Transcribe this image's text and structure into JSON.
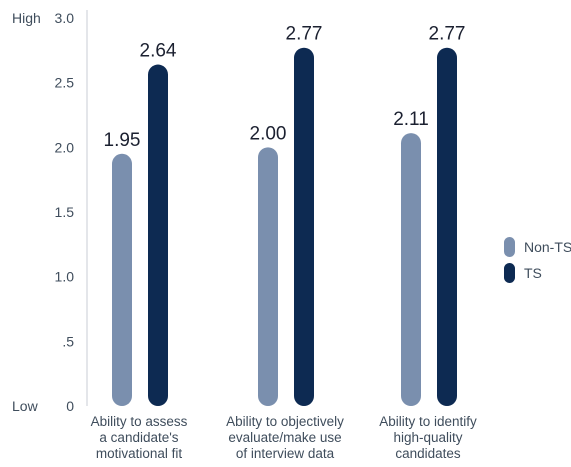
{
  "chart_data": {
    "type": "bar",
    "title": "",
    "xlabel": "",
    "ylabel": "",
    "ylim": [
      0,
      3.0
    ],
    "yticks": [
      {
        "value": 3.0,
        "label": "3.0"
      },
      {
        "value": 2.5,
        "label": "2.5"
      },
      {
        "value": 2.0,
        "label": "2.0"
      },
      {
        "value": 1.5,
        "label": "1.5"
      },
      {
        "value": 1.0,
        "label": "1.0"
      },
      {
        "value": 0.5,
        "label": ".5"
      },
      {
        "value": 0,
        "label": "0"
      }
    ],
    "scale_labels": {
      "high": "High",
      "low": "Low"
    },
    "categories": [
      [
        "Ability to assess",
        "a candidate's",
        "motivational fit"
      ],
      [
        "Ability to objectively",
        "evaluate/make use",
        "of interview data"
      ],
      [
        "Ability to identify",
        "high-quality",
        "candidates"
      ]
    ],
    "series": [
      {
        "name": "Non-TS",
        "color": "#7a8fae",
        "values": [
          1.95,
          2.0,
          2.11
        ],
        "labels": [
          "1.95",
          "2.00",
          "2.11"
        ]
      },
      {
        "name": "TS",
        "color": "#0d2a52",
        "values": [
          2.64,
          2.77,
          2.77
        ],
        "labels": [
          "2.64",
          "2.77",
          "2.77"
        ]
      }
    ],
    "legend_position": "right",
    "grid": false,
    "data_labels": true
  }
}
